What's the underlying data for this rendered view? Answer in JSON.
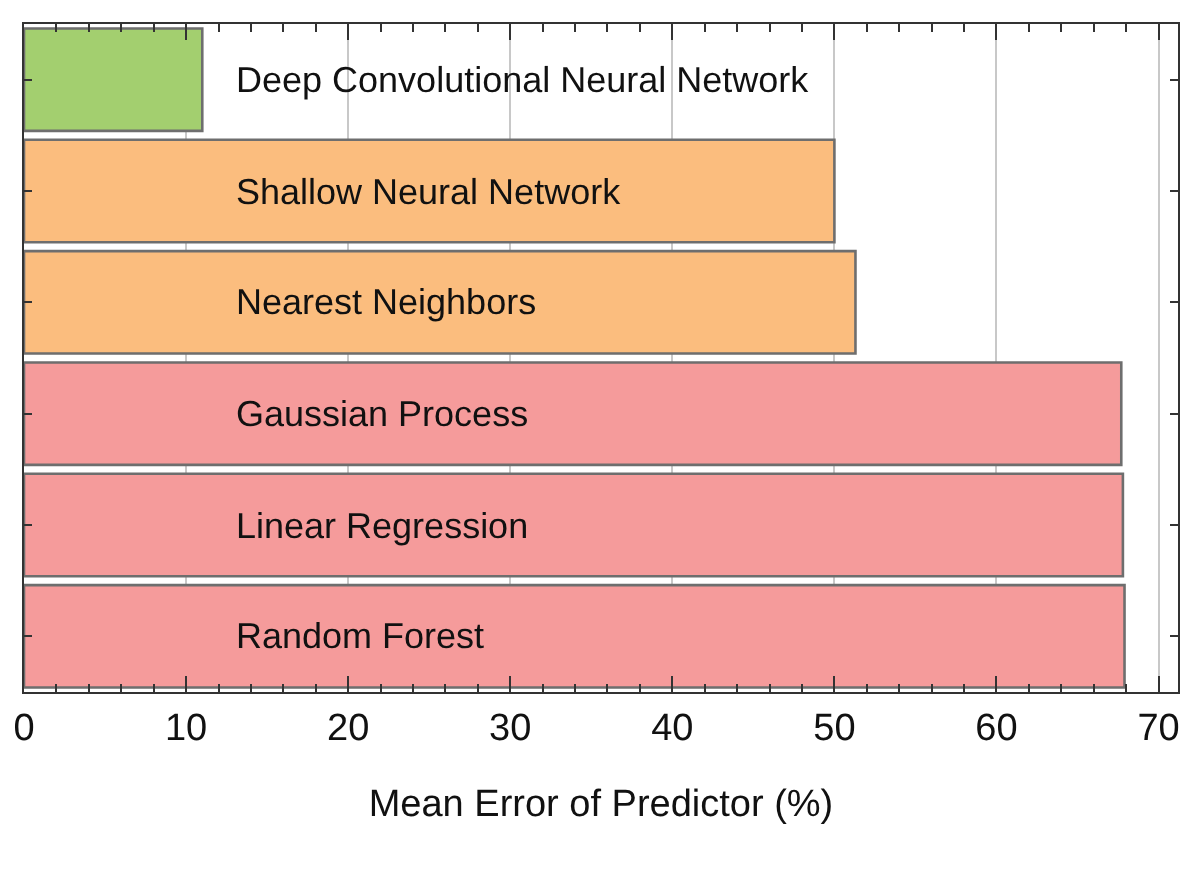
{
  "chart_data": {
    "type": "bar",
    "orientation": "horizontal",
    "xlabel": "Mean Error of Predictor (%)",
    "categories": [
      "Deep Convolutional Neural Network",
      "Shallow Neural Network",
      "Nearest Neighbors",
      "Gaussian Process",
      "Linear Regression",
      "Random Forest"
    ],
    "values": [
      11.0,
      50.0,
      51.3,
      67.7,
      67.8,
      67.9
    ],
    "colors": [
      "#a3cf6f",
      "#fbbd7e",
      "#fbbd7e",
      "#f59b9b",
      "#f59b9b",
      "#f59b9b"
    ],
    "xlim": [
      0,
      71.2
    ],
    "xticks": [
      0,
      10,
      20,
      30,
      40,
      50,
      60,
      70
    ],
    "grid": "x"
  }
}
